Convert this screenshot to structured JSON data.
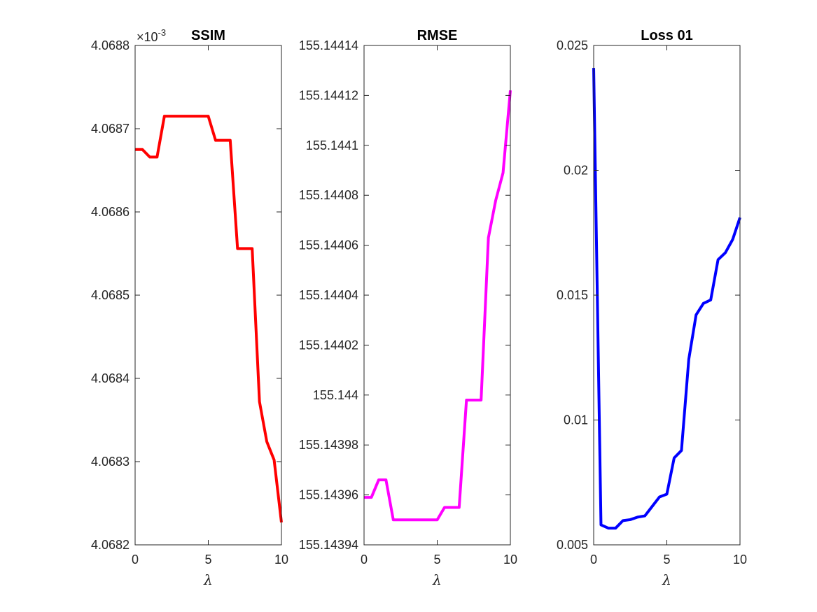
{
  "chart_data": [
    {
      "type": "line",
      "title": "SSIM",
      "xlabel": "λ",
      "ylabel": "",
      "exponent_label": "×10",
      "exponent_power": "-3",
      "color": "#ff0000",
      "xlim": [
        0,
        10
      ],
      "ylim": [
        4.0682,
        4.0688
      ],
      "xticks": [
        0,
        5,
        10
      ],
      "xtick_labels": [
        "0",
        "5",
        "10"
      ],
      "yticks": [
        4.0682,
        4.0683,
        4.0684,
        4.0685,
        4.0686,
        4.0687,
        4.0688
      ],
      "ytick_labels": [
        "4.0682",
        "4.0683",
        "4.0684",
        "4.0685",
        "4.0686",
        "4.0687",
        "4.0688"
      ],
      "x": [
        0,
        0.5,
        1,
        1.5,
        2,
        2.5,
        3,
        3.5,
        4,
        4.5,
        5,
        5.5,
        6,
        6.5,
        7,
        7.5,
        8,
        8.5,
        9,
        9.5,
        10
      ],
      "y": [
        4.068675,
        4.068675,
        4.068666,
        4.068666,
        4.068715,
        4.068715,
        4.068715,
        4.068715,
        4.068715,
        4.068715,
        4.068715,
        4.068686,
        4.068686,
        4.068686,
        4.068556,
        4.068556,
        4.068556,
        4.068372,
        4.068324,
        4.068302,
        4.068227
      ],
      "grid": false
    },
    {
      "type": "line",
      "title": "RMSE",
      "xlabel": "λ",
      "ylabel": "",
      "color": "#ff00ff",
      "xlim": [
        0,
        10
      ],
      "ylim": [
        155.14394,
        155.14414
      ],
      "xticks": [
        0,
        5,
        10
      ],
      "xtick_labels": [
        "0",
        "5",
        "10"
      ],
      "yticks": [
        155.14394,
        155.14396,
        155.14398,
        155.144,
        155.14402,
        155.14404,
        155.14406,
        155.14408,
        155.1441,
        155.14412,
        155.14414
      ],
      "ytick_labels": [
        "155.14394",
        "155.14396",
        "155.14398",
        "155.144",
        "155.14402",
        "155.14404",
        "155.14406",
        "155.14408",
        "155.1441",
        "155.14412",
        "155.14414"
      ],
      "x": [
        0,
        0.5,
        1,
        1.5,
        2,
        2.5,
        3,
        3.5,
        4,
        4.5,
        5,
        5.5,
        6,
        6.5,
        7,
        7.5,
        8,
        8.5,
        9,
        9.5,
        10
      ],
      "y": [
        155.143959,
        155.143959,
        155.143966,
        155.143966,
        155.14395,
        155.14395,
        155.14395,
        155.14395,
        155.14395,
        155.14395,
        155.14395,
        155.143955,
        155.143955,
        155.143955,
        155.143998,
        155.143998,
        155.143998,
        155.144063,
        155.144078,
        155.144089,
        155.144122
      ],
      "grid": false
    },
    {
      "type": "line",
      "title": "Loss 01",
      "xlabel": "λ",
      "ylabel": "",
      "color": "#0000ff",
      "xlim": [
        0,
        10
      ],
      "ylim": [
        0.005,
        0.025
      ],
      "xticks": [
        0,
        5,
        10
      ],
      "xtick_labels": [
        "0",
        "5",
        "10"
      ],
      "yticks": [
        0.005,
        0.01,
        0.015,
        0.02,
        0.025
      ],
      "ytick_labels": [
        "0.005",
        "0.01",
        "0.015",
        "0.02",
        "0.025"
      ],
      "x": [
        0,
        0.5,
        1,
        1.5,
        2,
        2.5,
        3,
        3.5,
        4,
        4.5,
        5,
        5.5,
        6,
        6.5,
        7,
        7.5,
        8,
        8.5,
        9,
        9.5,
        10
      ],
      "y": [
        0.0241,
        0.0058,
        0.00567,
        0.00567,
        0.00597,
        0.00601,
        0.00611,
        0.00616,
        0.00654,
        0.00692,
        0.00703,
        0.00848,
        0.00878,
        0.01243,
        0.01421,
        0.01467,
        0.01481,
        0.01642,
        0.0167,
        0.01723,
        0.01811
      ],
      "grid": false
    }
  ]
}
